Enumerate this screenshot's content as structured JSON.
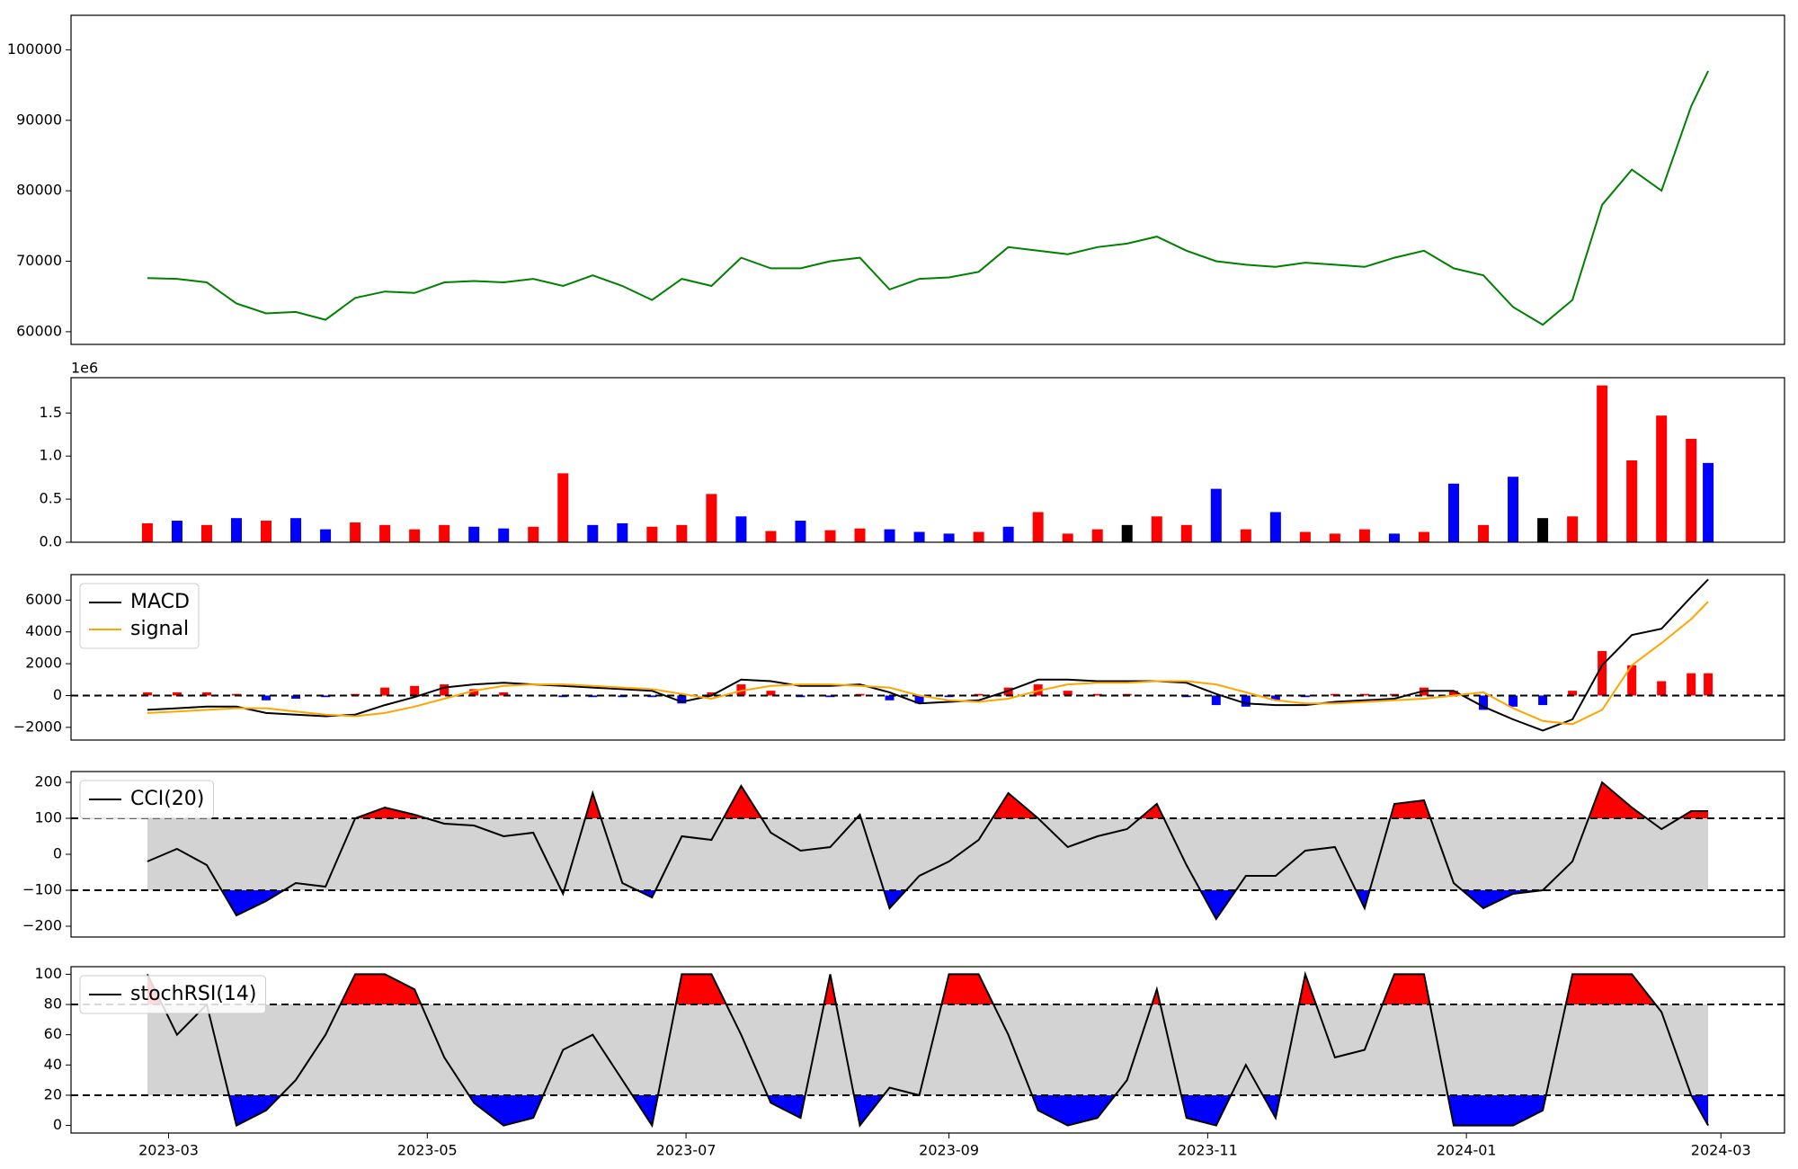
{
  "chart_data": [
    {
      "type": "line",
      "x": [
        "2023-02-24",
        "2023-03-03",
        "2023-03-10",
        "2023-03-17",
        "2023-03-24",
        "2023-03-31",
        "2023-04-07",
        "2023-04-14",
        "2023-04-21",
        "2023-04-28",
        "2023-05-05",
        "2023-05-12",
        "2023-05-19",
        "2023-05-26",
        "2023-06-02",
        "2023-06-09",
        "2023-06-16",
        "2023-06-23",
        "2023-06-30",
        "2023-07-07",
        "2023-07-14",
        "2023-07-21",
        "2023-07-28",
        "2023-08-04",
        "2023-08-11",
        "2023-08-18",
        "2023-08-25",
        "2023-09-01",
        "2023-09-08",
        "2023-09-15",
        "2023-09-22",
        "2023-09-29",
        "2023-10-06",
        "2023-10-13",
        "2023-10-20",
        "2023-10-27",
        "2023-11-03",
        "2023-11-10",
        "2023-11-17",
        "2023-11-24",
        "2023-12-01",
        "2023-12-08",
        "2023-12-15",
        "2023-12-22",
        "2023-12-29",
        "2024-01-05",
        "2024-01-12",
        "2024-01-19",
        "2024-01-26",
        "2024-02-02",
        "2024-02-09",
        "2024-02-16",
        "2024-02-23",
        "2024-02-27"
      ],
      "values": [
        67600,
        67500,
        67000,
        64000,
        62600,
        62800,
        61700,
        64800,
        65700,
        65500,
        67000,
        67200,
        67000,
        67500,
        66500,
        68000,
        66500,
        64500,
        67500,
        66500,
        70500,
        69000,
        69000,
        70000,
        70500,
        66000,
        67500,
        67700,
        68500,
        72000,
        71500,
        71000,
        72000,
        72500,
        73500,
        71500,
        70000,
        69500,
        69200,
        69800,
        69500,
        69200,
        70500,
        71500,
        69000,
        68000,
        63500,
        61000,
        64500,
        78000,
        83000,
        80000,
        92000,
        97000
      ],
      "color": "green",
      "xlim": [
        "2023-02-06",
        "2024-03-16"
      ],
      "ylim": [
        58200,
        104900
      ],
      "yticks": [
        60000,
        70000,
        80000,
        90000,
        100000
      ]
    },
    {
      "type": "bar",
      "x": [
        "2023-02-24",
        "2023-03-03",
        "2023-03-10",
        "2023-03-17",
        "2023-03-24",
        "2023-03-31",
        "2023-04-07",
        "2023-04-14",
        "2023-04-21",
        "2023-04-28",
        "2023-05-05",
        "2023-05-12",
        "2023-05-19",
        "2023-05-26",
        "2023-06-02",
        "2023-06-09",
        "2023-06-16",
        "2023-06-23",
        "2023-06-30",
        "2023-07-07",
        "2023-07-14",
        "2023-07-21",
        "2023-07-28",
        "2023-08-04",
        "2023-08-11",
        "2023-08-18",
        "2023-08-25",
        "2023-09-01",
        "2023-09-08",
        "2023-09-15",
        "2023-09-22",
        "2023-09-29",
        "2023-10-06",
        "2023-10-13",
        "2023-10-20",
        "2023-10-27",
        "2023-11-03",
        "2023-11-10",
        "2023-11-17",
        "2023-11-24",
        "2023-12-01",
        "2023-12-08",
        "2023-12-15",
        "2023-12-22",
        "2023-12-29",
        "2024-01-05",
        "2024-01-12",
        "2024-01-19",
        "2024-01-26",
        "2024-02-02",
        "2024-02-09",
        "2024-02-16",
        "2024-02-23",
        "2024-02-27"
      ],
      "values": [
        220000,
        250000,
        200000,
        280000,
        250000,
        280000,
        150000,
        230000,
        200000,
        150000,
        200000,
        180000,
        160000,
        180000,
        800000,
        200000,
        220000,
        180000,
        200000,
        560000,
        300000,
        130000,
        250000,
        140000,
        160000,
        150000,
        120000,
        100000,
        120000,
        180000,
        350000,
        100000,
        150000,
        200000,
        300000,
        200000,
        620000,
        150000,
        350000,
        120000,
        100000,
        150000,
        100000,
        120000,
        680000,
        200000,
        760000,
        280000,
        300000,
        1820000,
        950000,
        1470000,
        1200000,
        920000
      ],
      "colors": [
        "red",
        "blue",
        "red",
        "blue",
        "red",
        "blue",
        "blue",
        "red",
        "red",
        "red",
        "red",
        "blue",
        "blue",
        "red",
        "red",
        "blue",
        "blue",
        "red",
        "red",
        "red",
        "blue",
        "red",
        "blue",
        "red",
        "red",
        "blue",
        "blue",
        "blue",
        "red",
        "blue",
        "red",
        "red",
        "red",
        "black",
        "red",
        "red",
        "blue",
        "red",
        "blue",
        "red",
        "red",
        "red",
        "blue",
        "red",
        "blue",
        "red",
        "blue",
        "black",
        "red",
        "red",
        "red",
        "red",
        "red",
        "blue"
      ],
      "offset_label": "1e6",
      "xlim": [
        "2023-02-06",
        "2024-03-16"
      ],
      "ylim": [
        0,
        1910000
      ],
      "yticks": [
        {
          "value": 0,
          "label": "0.0"
        },
        {
          "value": 500000,
          "label": "0.5"
        },
        {
          "value": 1000000,
          "label": "1.0"
        },
        {
          "value": 1500000,
          "label": "1.5"
        }
      ]
    },
    {
      "type": "macd",
      "x": [
        "2023-02-24",
        "2023-03-03",
        "2023-03-10",
        "2023-03-17",
        "2023-03-24",
        "2023-03-31",
        "2023-04-07",
        "2023-04-14",
        "2023-04-21",
        "2023-04-28",
        "2023-05-05",
        "2023-05-12",
        "2023-05-19",
        "2023-05-26",
        "2023-06-02",
        "2023-06-09",
        "2023-06-16",
        "2023-06-23",
        "2023-06-30",
        "2023-07-07",
        "2023-07-14",
        "2023-07-21",
        "2023-07-28",
        "2023-08-04",
        "2023-08-11",
        "2023-08-18",
        "2023-08-25",
        "2023-09-01",
        "2023-09-08",
        "2023-09-15",
        "2023-09-22",
        "2023-09-29",
        "2023-10-06",
        "2023-10-13",
        "2023-10-20",
        "2023-10-27",
        "2023-11-03",
        "2023-11-10",
        "2023-11-17",
        "2023-11-24",
        "2023-12-01",
        "2023-12-08",
        "2023-12-15",
        "2023-12-22",
        "2023-12-29",
        "2024-01-05",
        "2024-01-12",
        "2024-01-19",
        "2024-01-26",
        "2024-02-02",
        "2024-02-09",
        "2024-02-16",
        "2024-02-23",
        "2024-02-27"
      ],
      "series": [
        {
          "name": "MACD",
          "color": "black",
          "values": [
            -900,
            -800,
            -700,
            -700,
            -1100,
            -1200,
            -1300,
            -1200,
            -600,
            -100,
            500,
            700,
            800,
            700,
            600,
            500,
            400,
            300,
            -400,
            0,
            1000,
            900,
            600,
            600,
            700,
            200,
            -500,
            -400,
            -300,
            300,
            1000,
            1000,
            900,
            900,
            900,
            800,
            100,
            -500,
            -600,
            -600,
            -400,
            -300,
            -200,
            300,
            300,
            -700,
            -1500,
            -2200,
            -1500,
            1900,
            3800,
            4200,
            6200,
            7300
          ]
        },
        {
          "name": "signal",
          "color": "orange",
          "values": [
            -1100,
            -1000,
            -900,
            -800,
            -800,
            -1000,
            -1200,
            -1300,
            -1100,
            -700,
            -200,
            300,
            600,
            700,
            700,
            600,
            500,
            400,
            100,
            -200,
            300,
            600,
            700,
            700,
            600,
            500,
            0,
            -300,
            -400,
            -200,
            300,
            700,
            800,
            800,
            900,
            900,
            700,
            200,
            -300,
            -500,
            -500,
            -400,
            -300,
            -200,
            0,
            200,
            -800,
            -1600,
            -1800,
            -900,
            1900,
            3300,
            4800,
            5900
          ]
        }
      ],
      "histogram": {
        "values": [
          200,
          200,
          200,
          100,
          -300,
          -200,
          -100,
          100,
          500,
          600,
          700,
          400,
          200,
          0,
          -100,
          -100,
          -100,
          -100,
          -500,
          200,
          700,
          300,
          -100,
          -100,
          100,
          -300,
          -500,
          -100,
          100,
          500,
          700,
          300,
          100,
          100,
          0,
          -100,
          -600,
          -700,
          -300,
          -100,
          100,
          100,
          100,
          500,
          300,
          -900,
          -700,
          -600,
          300,
          2800,
          1900,
          900,
          1400,
          1400
        ],
        "positive_color": "red",
        "negative_color": "blue"
      },
      "hline": 0,
      "legend": "upper left",
      "xlim": [
        "2023-02-06",
        "2024-03-16"
      ],
      "ylim": [
        -2800,
        7600
      ],
      "yticks": [
        {
          "value": -2000,
          "label": "−2000"
        },
        0,
        2000,
        4000,
        6000
      ]
    },
    {
      "type": "oscillator",
      "x": [
        "2023-02-24",
        "2023-03-03",
        "2023-03-10",
        "2023-03-17",
        "2023-03-24",
        "2023-03-31",
        "2023-04-07",
        "2023-04-14",
        "2023-04-21",
        "2023-04-28",
        "2023-05-05",
        "2023-05-12",
        "2023-05-19",
        "2023-05-26",
        "2023-06-02",
        "2023-06-09",
        "2023-06-16",
        "2023-06-23",
        "2023-06-30",
        "2023-07-07",
        "2023-07-14",
        "2023-07-21",
        "2023-07-28",
        "2023-08-04",
        "2023-08-11",
        "2023-08-18",
        "2023-08-25",
        "2023-09-01",
        "2023-09-08",
        "2023-09-15",
        "2023-09-22",
        "2023-09-29",
        "2023-10-06",
        "2023-10-13",
        "2023-10-20",
        "2023-10-27",
        "2023-11-03",
        "2023-11-10",
        "2023-11-17",
        "2023-11-24",
        "2023-12-01",
        "2023-12-08",
        "2023-12-15",
        "2023-12-22",
        "2023-12-29",
        "2024-01-05",
        "2024-01-12",
        "2024-01-19",
        "2024-01-26",
        "2024-02-02",
        "2024-02-09",
        "2024-02-16",
        "2024-02-23",
        "2024-02-27"
      ],
      "series": [
        {
          "name": "CCI(20)",
          "color": "black",
          "values": [
            -20,
            15,
            -30,
            -170,
            -130,
            -80,
            -90,
            100,
            130,
            110,
            85,
            80,
            50,
            60,
            -110,
            170,
            -80,
            -120,
            50,
            40,
            190,
            60,
            10,
            20,
            110,
            -150,
            -60,
            -20,
            40,
            170,
            100,
            20,
            50,
            70,
            140,
            -30,
            -180,
            -60,
            -60,
            10,
            20,
            -150,
            140,
            150,
            -80,
            -150,
            -110,
            -100,
            -20,
            200,
            130,
            70,
            120,
            120
          ]
        }
      ],
      "bands": [
        -100,
        100
      ],
      "band_color": "lightgray",
      "upper_fill": "red",
      "lower_fill": "blue",
      "legend": "upper left",
      "xlim": [
        "2023-02-06",
        "2024-03-16"
      ],
      "ylim": [
        -230,
        230
      ],
      "yticks": [
        {
          "value": -200,
          "label": "−200"
        },
        {
          "value": -100,
          "label": "−100"
        },
        0,
        100,
        200
      ]
    },
    {
      "type": "oscillator",
      "x": [
        "2023-02-24",
        "2023-03-03",
        "2023-03-10",
        "2023-03-17",
        "2023-03-24",
        "2023-03-31",
        "2023-04-07",
        "2023-04-14",
        "2023-04-21",
        "2023-04-28",
        "2023-05-05",
        "2023-05-12",
        "2023-05-19",
        "2023-05-26",
        "2023-06-02",
        "2023-06-09",
        "2023-06-16",
        "2023-06-23",
        "2023-06-30",
        "2023-07-07",
        "2023-07-14",
        "2023-07-21",
        "2023-07-28",
        "2023-08-04",
        "2023-08-11",
        "2023-08-18",
        "2023-08-25",
        "2023-09-01",
        "2023-09-08",
        "2023-09-15",
        "2023-09-22",
        "2023-09-29",
        "2023-10-06",
        "2023-10-13",
        "2023-10-20",
        "2023-10-27",
        "2023-11-03",
        "2023-11-10",
        "2023-11-17",
        "2023-11-24",
        "2023-12-01",
        "2023-12-08",
        "2023-12-15",
        "2023-12-22",
        "2023-12-29",
        "2024-01-05",
        "2024-01-12",
        "2024-01-19",
        "2024-01-26",
        "2024-02-02",
        "2024-02-09",
        "2024-02-16",
        "2024-02-23",
        "2024-02-27"
      ],
      "series": [
        {
          "name": "stochRSI(14)",
          "color": "black",
          "values": [
            100,
            60,
            80,
            0,
            10,
            30,
            60,
            100,
            100,
            90,
            45,
            15,
            0,
            5,
            50,
            60,
            30,
            0,
            100,
            100,
            60,
            15,
            5,
            100,
            0,
            25,
            20,
            100,
            100,
            60,
            10,
            0,
            5,
            30,
            90,
            5,
            0,
            40,
            5,
            100,
            45,
            50,
            100,
            100,
            0,
            0,
            0,
            10,
            100,
            100,
            100,
            75,
            20,
            0
          ]
        }
      ],
      "bands": [
        20,
        80
      ],
      "band_color": "lightgray",
      "upper_fill": "red",
      "lower_fill": "blue",
      "legend": "upper left",
      "xlim": [
        "2023-02-06",
        "2024-03-16"
      ],
      "ylim": [
        -5,
        105
      ],
      "yticks": [
        0,
        20,
        40,
        60,
        80,
        100
      ],
      "xticks": [
        "2023-03",
        "2023-05",
        "2023-07",
        "2023-09",
        "2023-11",
        "2024-01",
        "2024-03"
      ]
    }
  ]
}
